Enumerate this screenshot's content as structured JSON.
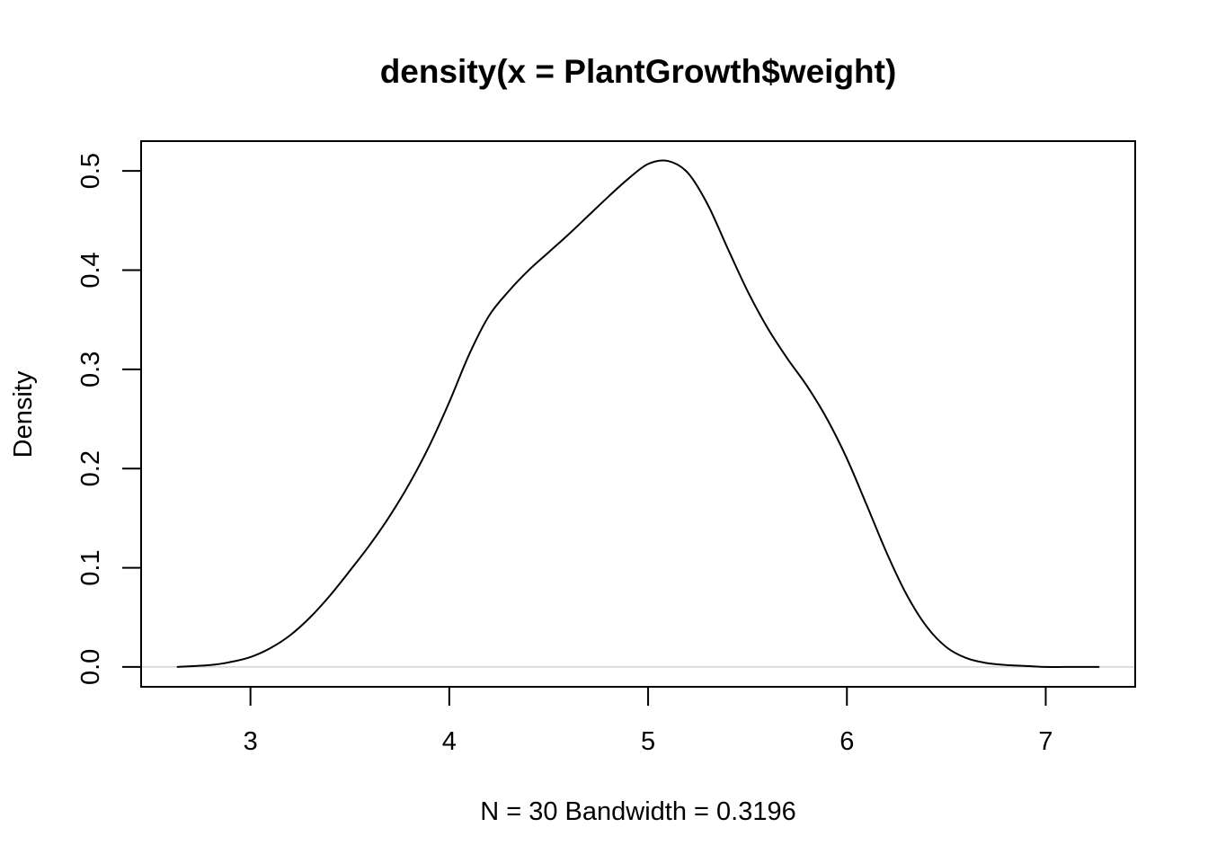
{
  "chart_data": {
    "type": "line",
    "title": "density(x = PlantGrowth$weight)",
    "xlabel": "N = 30   Bandwidth = 0.3196",
    "ylabel": "Density",
    "xlim": [
      2.45,
      7.45
    ],
    "ylim": [
      -0.02,
      0.53
    ],
    "x_ticks": [
      3,
      4,
      5,
      6,
      7
    ],
    "x_tick_labels": [
      "3",
      "4",
      "5",
      "6",
      "7"
    ],
    "y_ticks": [
      0.0,
      0.1,
      0.2,
      0.3,
      0.4,
      0.5
    ],
    "y_tick_labels": [
      "0.0",
      "0.1",
      "0.2",
      "0.3",
      "0.4",
      "0.5"
    ],
    "grid": false,
    "baseline_y": 0,
    "series": [
      {
        "x": [
          2.63,
          2.8,
          2.9,
          3.0,
          3.1,
          3.2,
          3.3,
          3.4,
          3.5,
          3.6,
          3.7,
          3.8,
          3.9,
          4.0,
          4.1,
          4.2,
          4.3,
          4.4,
          4.5,
          4.6,
          4.7,
          4.8,
          4.9,
          5.0,
          5.1,
          5.2,
          5.3,
          5.4,
          5.5,
          5.6,
          5.7,
          5.8,
          5.9,
          6.0,
          6.1,
          6.2,
          6.3,
          6.4,
          6.5,
          6.6,
          6.7,
          6.8,
          6.9,
          7.0,
          7.1,
          7.27
        ],
        "y": [
          0.0,
          0.002,
          0.005,
          0.01,
          0.019,
          0.032,
          0.05,
          0.072,
          0.097,
          0.123,
          0.152,
          0.185,
          0.223,
          0.267,
          0.315,
          0.354,
          0.379,
          0.4,
          0.418,
          0.436,
          0.455,
          0.474,
          0.492,
          0.507,
          0.51,
          0.498,
          0.466,
          0.422,
          0.379,
          0.342,
          0.311,
          0.283,
          0.25,
          0.21,
          0.163,
          0.115,
          0.073,
          0.041,
          0.02,
          0.009,
          0.004,
          0.002,
          0.001,
          0.0,
          0.0,
          0.0
        ]
      }
    ]
  }
}
